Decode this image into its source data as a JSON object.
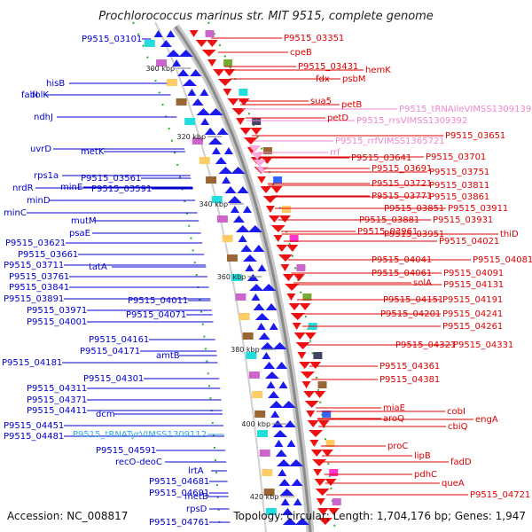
{
  "title": "Prochlorococcus marinus str. MIT 9515, complete genome",
  "footer": {
    "accession": "Accession: NC_008817",
    "topology": "Topology: circular; Length: 1,704,176 bp; Genes: 1,947"
  },
  "scale_labels": [
    "300 kbp",
    "320 kbp",
    "340 kbp",
    "360 kbp",
    "380 kbp",
    "400 kbp",
    "420 kbp"
  ],
  "colors": {
    "left_labels": "#0000cc",
    "right_labels": "#dd0000",
    "trna_labels": "#33aadd",
    "rrna_labels": "#ee88cc",
    "backbone": "#888888",
    "fwd_genes": "#1a1aee",
    "rev_genes": "#ee1111"
  },
  "left_labels": [
    "P9515_03101",
    "hisB",
    "fabI",
    "folK",
    "ndhJ",
    "uvrD",
    "metK",
    "rps1a",
    "nrdR",
    "P9515_03561",
    "minE",
    "P9515_03591",
    "minD",
    "minC",
    "mutM",
    "psaE",
    "P9515_03621",
    "P9515_03661",
    "P9515_03711",
    "tatA",
    "P9515_03761",
    "P9515_03841",
    "P9515_03891",
    "P9515_04011",
    "P9515_03971",
    "P9515_04071",
    "P9515_04001",
    "P9515_04161",
    "P9515_04171",
    "P9515_04181",
    "amtB",
    "P9515_04301",
    "P9515_04311",
    "P9515_04371",
    "P9515_04411",
    "dcm",
    "P9515_04451",
    "P9515_04481",
    "P9515_tRNATyrVIMSS1309112",
    "P9515_04591",
    "recO-deoC",
    "lrtA",
    "P9515_04681",
    "P9515_04691",
    "metB",
    "rpsD",
    "P9515_04761"
  ],
  "right_labels": [
    "P9515_03351",
    "cpeB",
    "P9515_03431",
    "hemK",
    "fdx",
    "psbM",
    "sua5",
    "petB",
    "petD",
    "P9515_tRNAIleVIMSS1309139",
    "P9515_rrsVIMSS1309392",
    "P9515_03651",
    "P9515_rrfVIMSS1365721",
    "rrf",
    "P9515_03641",
    "P9515_03701",
    "P9515_03691",
    "P9515_03751",
    "P9515_03721",
    "P9515_03811",
    "P9515_03771",
    "P9515_03861",
    "P9515_03851",
    "P9515_03911",
    "P9515_03881",
    "P9515_03931",
    "P9515_03961",
    "thiD",
    "P9515_03951",
    "P9515_04021",
    "P9515_04041",
    "P9515_04081",
    "P9515_04061",
    "P9515_04091",
    "solA",
    "P9515_04131",
    "P9515_04151",
    "P9515_04191",
    "P9515_04201",
    "P9515_04241",
    "P9515_04261",
    "P9515_04321",
    "P9515_04331",
    "P9515_04361",
    "P9515_04381",
    "aroQ",
    "miaE",
    "cobI",
    "engA",
    "cbiQ",
    "proC",
    "lipB",
    "fadD",
    "pdhC",
    "queA",
    "P9515_04721"
  ]
}
